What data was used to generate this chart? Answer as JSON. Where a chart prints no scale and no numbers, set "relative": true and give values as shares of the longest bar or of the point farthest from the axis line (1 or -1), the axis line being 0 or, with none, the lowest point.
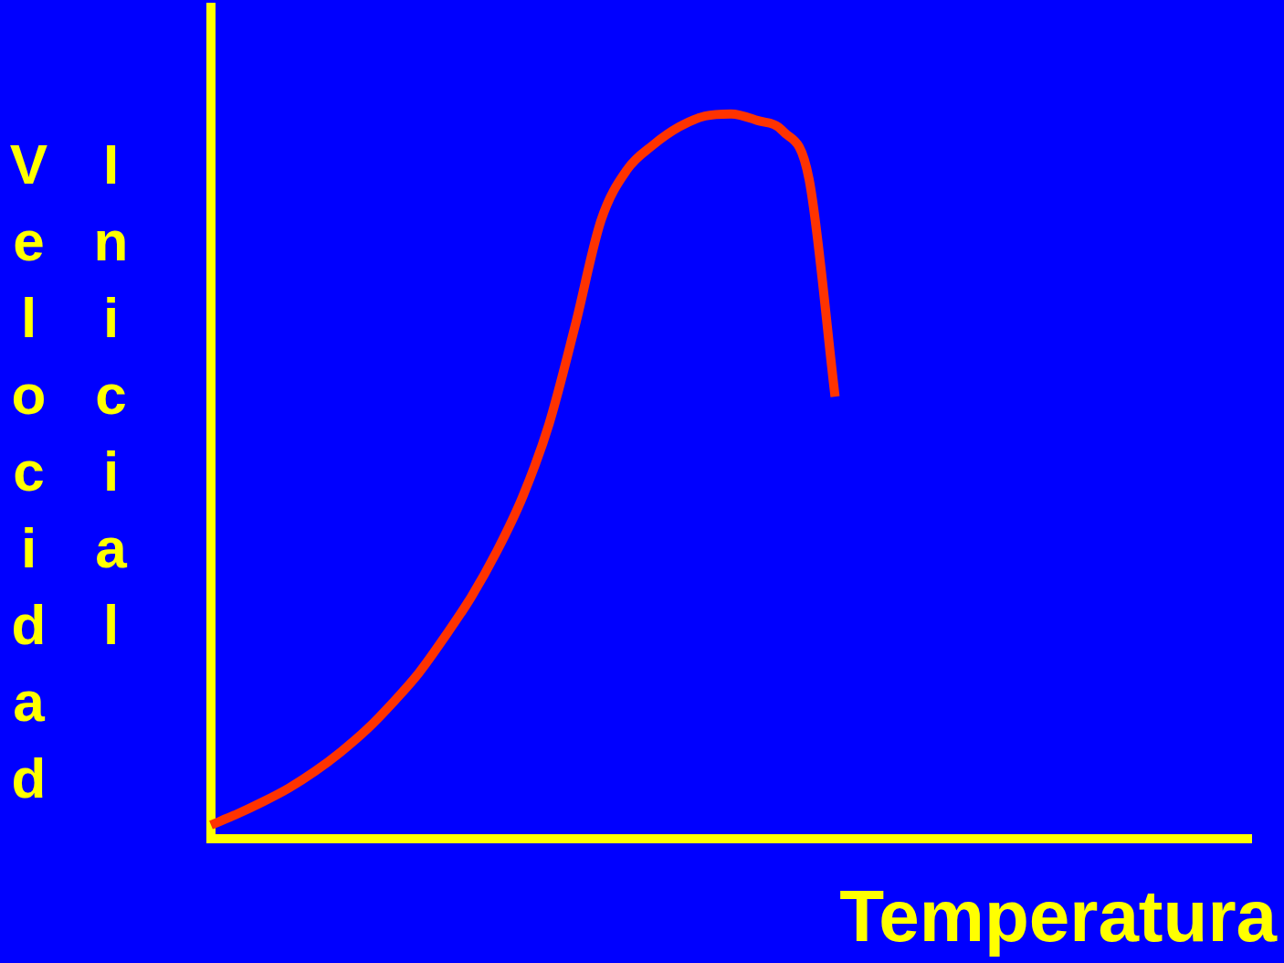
{
  "chart_data": {
    "type": "line",
    "relative": true,
    "xlabel": "Temperatura",
    "ylabel": "Velocidad Inicial",
    "categories": [
      null,
      null,
      null,
      null,
      null,
      null,
      null,
      null,
      null,
      null,
      null,
      null,
      null,
      null,
      null,
      null,
      null,
      null,
      null,
      null,
      null,
      null,
      null,
      null,
      null,
      null,
      null,
      null,
      null,
      null,
      null,
      null,
      null,
      null,
      null,
      null,
      null,
      null,
      null,
      null,
      null
    ],
    "series": [
      {
        "color": "#ff3300",
        "values": [
          0.019,
          0.034,
          0.051,
          0.07,
          0.093,
          0.12,
          0.151,
          0.188,
          0.229,
          0.279,
          0.333,
          0.397,
          0.473,
          0.572,
          0.707,
          0.853,
          0.923,
          0.957,
          0.982,
          0.997,
          1.0,
          0.991,
          0.976,
          0.91,
          0.61,
          null,
          null,
          null,
          null,
          null,
          null,
          null,
          null,
          null,
          null,
          null,
          null,
          null,
          null,
          null,
          null
        ]
      }
    ]
  }
}
